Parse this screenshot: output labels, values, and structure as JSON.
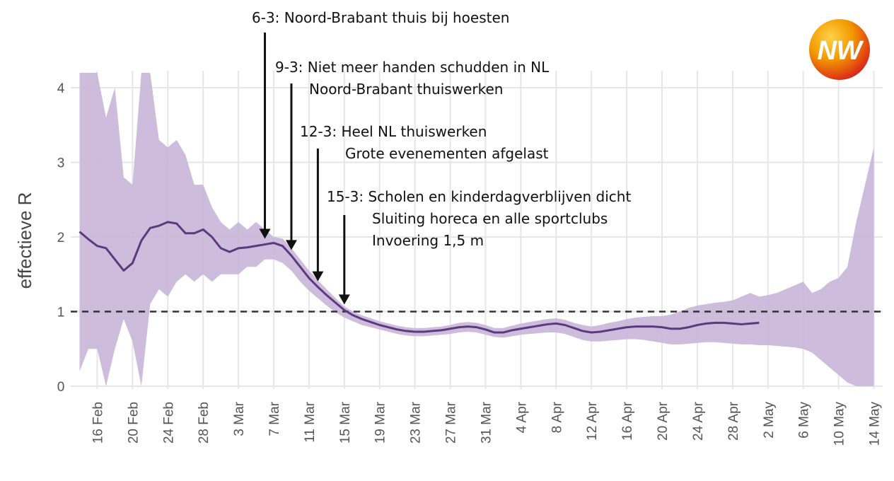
{
  "chart_data": {
    "type": "line",
    "title": "",
    "ylabel": "effectieve R",
    "xlabel": "",
    "ylim": [
      0,
      4.2
    ],
    "yticks": [
      0,
      1,
      2,
      3,
      4
    ],
    "xlim": [
      "2020-02-13",
      "2020-05-15"
    ],
    "xticks": [
      "16 Feb",
      "20 Feb",
      "24 Feb",
      "28 Feb",
      "3 Mar",
      "7 Mar",
      "11 Mar",
      "15 Mar",
      "19 Mar",
      "23 Mar",
      "27 Mar",
      "31 Mar",
      "4 Apr",
      "8 Apr",
      "12 Apr",
      "16 Apr",
      "20 Apr",
      "24 Apr",
      "28 Apr",
      "2 May",
      "6 May",
      "10 May",
      "14 May"
    ],
    "xtick_dates": [
      "2020-02-16",
      "2020-02-20",
      "2020-02-24",
      "2020-02-28",
      "2020-03-03",
      "2020-03-07",
      "2020-03-11",
      "2020-03-15",
      "2020-03-19",
      "2020-03-23",
      "2020-03-27",
      "2020-03-31",
      "2020-04-04",
      "2020-04-08",
      "2020-04-12",
      "2020-04-16",
      "2020-04-20",
      "2020-04-24",
      "2020-04-28",
      "2020-05-02",
      "2020-05-06",
      "2020-05-10",
      "2020-05-14"
    ],
    "grid": true,
    "reference_line": {
      "y": 1,
      "style": "dashed"
    },
    "series": [
      {
        "x": [
          "2020-02-14",
          "2020-02-15",
          "2020-02-16",
          "2020-02-17",
          "2020-02-18",
          "2020-02-19",
          "2020-02-20",
          "2020-02-21",
          "2020-02-22",
          "2020-02-23",
          "2020-02-24",
          "2020-02-25",
          "2020-02-26",
          "2020-02-27",
          "2020-02-28",
          "2020-02-29",
          "2020-03-01",
          "2020-03-02",
          "2020-03-03",
          "2020-03-04",
          "2020-03-05",
          "2020-03-06",
          "2020-03-07",
          "2020-03-08",
          "2020-03-09",
          "2020-03-10",
          "2020-03-11",
          "2020-03-12",
          "2020-03-13",
          "2020-03-14",
          "2020-03-15",
          "2020-03-16",
          "2020-03-17",
          "2020-03-18",
          "2020-03-19",
          "2020-03-20",
          "2020-03-21",
          "2020-03-22",
          "2020-03-23",
          "2020-03-24",
          "2020-03-25",
          "2020-03-26",
          "2020-03-27",
          "2020-03-28",
          "2020-03-29",
          "2020-03-30",
          "2020-03-31",
          "2020-04-01",
          "2020-04-02",
          "2020-04-03",
          "2020-04-04",
          "2020-04-05",
          "2020-04-06",
          "2020-04-07",
          "2020-04-08",
          "2020-04-09",
          "2020-04-10",
          "2020-04-11",
          "2020-04-12",
          "2020-04-13",
          "2020-04-14",
          "2020-04-15",
          "2020-04-16",
          "2020-04-17",
          "2020-04-18",
          "2020-04-19",
          "2020-04-20",
          "2020-04-21",
          "2020-04-22",
          "2020-04-23",
          "2020-04-24",
          "2020-04-25",
          "2020-04-26",
          "2020-04-27",
          "2020-04-28",
          "2020-04-29",
          "2020-04-30",
          "2020-05-01"
        ],
        "y": [
          2.07,
          1.97,
          1.88,
          1.85,
          1.7,
          1.55,
          1.65,
          1.95,
          2.12,
          2.15,
          2.2,
          2.18,
          2.05,
          2.05,
          2.1,
          2.0,
          1.85,
          1.8,
          1.85,
          1.86,
          1.88,
          1.9,
          1.92,
          1.88,
          1.75,
          1.6,
          1.45,
          1.33,
          1.22,
          1.12,
          1.02,
          0.95,
          0.9,
          0.86,
          0.82,
          0.79,
          0.76,
          0.74,
          0.73,
          0.73,
          0.74,
          0.75,
          0.77,
          0.79,
          0.8,
          0.79,
          0.76,
          0.72,
          0.72,
          0.75,
          0.77,
          0.79,
          0.81,
          0.83,
          0.84,
          0.82,
          0.78,
          0.74,
          0.72,
          0.73,
          0.75,
          0.77,
          0.79,
          0.8,
          0.8,
          0.8,
          0.79,
          0.77,
          0.77,
          0.79,
          0.82,
          0.84,
          0.85,
          0.85,
          0.84,
          0.83,
          0.84,
          0.85
        ],
        "color": "#5b3a7e"
      }
    ],
    "confidence_band": {
      "x": [
        "2020-02-14",
        "2020-02-15",
        "2020-02-16",
        "2020-02-17",
        "2020-02-18",
        "2020-02-19",
        "2020-02-20",
        "2020-02-21",
        "2020-02-22",
        "2020-02-23",
        "2020-02-24",
        "2020-02-25",
        "2020-02-26",
        "2020-02-27",
        "2020-02-28",
        "2020-02-29",
        "2020-03-01",
        "2020-03-02",
        "2020-03-03",
        "2020-03-04",
        "2020-03-05",
        "2020-03-06",
        "2020-03-07",
        "2020-03-08",
        "2020-03-09",
        "2020-03-10",
        "2020-03-11",
        "2020-03-12",
        "2020-03-13",
        "2020-03-14",
        "2020-03-15",
        "2020-03-16",
        "2020-03-17",
        "2020-03-18",
        "2020-03-19",
        "2020-03-20",
        "2020-03-21",
        "2020-03-22",
        "2020-03-23",
        "2020-03-24",
        "2020-03-25",
        "2020-03-26",
        "2020-03-27",
        "2020-03-28",
        "2020-03-29",
        "2020-03-30",
        "2020-03-31",
        "2020-04-01",
        "2020-04-02",
        "2020-04-03",
        "2020-04-04",
        "2020-04-05",
        "2020-04-06",
        "2020-04-07",
        "2020-04-08",
        "2020-04-09",
        "2020-04-10",
        "2020-04-11",
        "2020-04-12",
        "2020-04-13",
        "2020-04-14",
        "2020-04-15",
        "2020-04-16",
        "2020-04-17",
        "2020-04-18",
        "2020-04-19",
        "2020-04-20",
        "2020-04-21",
        "2020-04-22",
        "2020-04-23",
        "2020-04-24",
        "2020-04-25",
        "2020-04-26",
        "2020-04-27",
        "2020-04-28",
        "2020-04-29",
        "2020-04-30",
        "2020-05-01",
        "2020-05-02",
        "2020-05-03",
        "2020-05-04",
        "2020-05-05",
        "2020-05-06",
        "2020-05-07",
        "2020-05-08",
        "2020-05-09",
        "2020-05-10",
        "2020-05-11",
        "2020-05-12",
        "2020-05-13",
        "2020-05-14"
      ],
      "upper": [
        4.2,
        4.2,
        4.2,
        3.6,
        4.0,
        2.8,
        2.7,
        4.2,
        4.2,
        3.3,
        3.2,
        3.3,
        3.1,
        2.7,
        2.7,
        2.4,
        2.2,
        2.1,
        2.2,
        2.1,
        2.2,
        2.1,
        2.0,
        1.98,
        1.85,
        1.7,
        1.55,
        1.42,
        1.3,
        1.18,
        1.07,
        1.0,
        0.95,
        0.91,
        0.87,
        0.84,
        0.81,
        0.79,
        0.78,
        0.78,
        0.79,
        0.8,
        0.82,
        0.85,
        0.86,
        0.85,
        0.82,
        0.78,
        0.78,
        0.81,
        0.84,
        0.86,
        0.88,
        0.9,
        0.91,
        0.89,
        0.85,
        0.82,
        0.8,
        0.82,
        0.85,
        0.87,
        0.9,
        0.92,
        0.93,
        0.94,
        0.94,
        0.96,
        1.0,
        1.05,
        1.08,
        1.1,
        1.12,
        1.13,
        1.15,
        1.2,
        1.25,
        1.2,
        1.22,
        1.25,
        1.3,
        1.35,
        1.4,
        1.25,
        1.3,
        1.4,
        1.45,
        1.6,
        2.2,
        2.7,
        3.2
      ],
      "lower": [
        0.2,
        0.5,
        0.5,
        0.0,
        0.5,
        0.9,
        0.6,
        0.0,
        1.1,
        1.3,
        1.2,
        1.4,
        1.5,
        1.4,
        1.5,
        1.4,
        1.5,
        1.5,
        1.5,
        1.6,
        1.6,
        1.7,
        1.7,
        1.65,
        1.55,
        1.4,
        1.28,
        1.18,
        1.08,
        0.99,
        0.92,
        0.87,
        0.82,
        0.79,
        0.76,
        0.73,
        0.7,
        0.68,
        0.67,
        0.67,
        0.68,
        0.69,
        0.7,
        0.72,
        0.73,
        0.72,
        0.69,
        0.66,
        0.65,
        0.67,
        0.69,
        0.7,
        0.71,
        0.72,
        0.72,
        0.7,
        0.66,
        0.62,
        0.6,
        0.6,
        0.61,
        0.62,
        0.63,
        0.63,
        0.62,
        0.6,
        0.58,
        0.56,
        0.56,
        0.57,
        0.58,
        0.59,
        0.59,
        0.58,
        0.57,
        0.56,
        0.56,
        0.55,
        0.55,
        0.54,
        0.53,
        0.52,
        0.5,
        0.45,
        0.35,
        0.25,
        0.15,
        0.05,
        0.0,
        0.0,
        0.0
      ],
      "color": "#c8b5d7"
    },
    "annotations": [
      {
        "lines": [
          "6-3: Noord-Brabant thuis bij hoesten"
        ],
        "x": "2020-03-06"
      },
      {
        "lines": [
          "9-3: Niet meer handen schudden in NL",
          "Noord-Brabant thuiswerken"
        ],
        "x": "2020-03-09"
      },
      {
        "lines": [
          "12-3: Heel NL thuiswerken",
          "Grote evenementen afgelast"
        ],
        "x": "2020-03-12"
      },
      {
        "lines": [
          "15-3: Scholen en kinderdagverblijven dicht",
          "Sluiting horeca en alle sportclubs",
          "Invoering 1,5 m"
        ],
        "x": "2020-03-15"
      }
    ]
  },
  "logo": {
    "text": "NW",
    "colors": [
      "#f6a800",
      "#e2161f"
    ]
  }
}
